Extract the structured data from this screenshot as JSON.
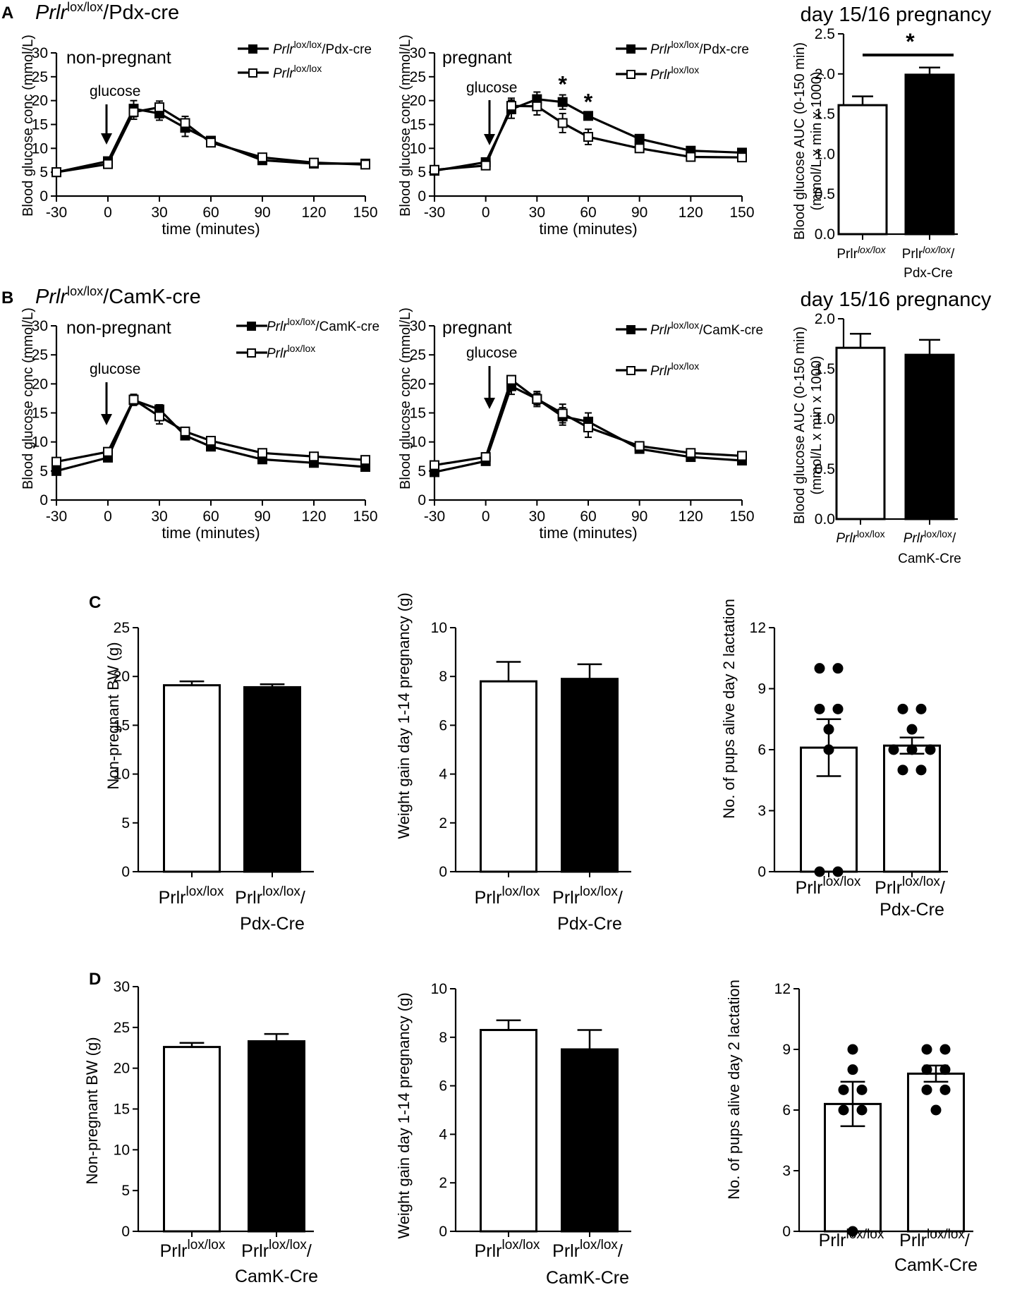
{
  "panels": {
    "A": "A",
    "B": "B",
    "C": "C",
    "D": "D"
  },
  "text": {
    "prlr": "Prlr",
    "lox": "lox/lox",
    "pdx_cre": "/Pdx-cre",
    "camk_cre": "/CamK-cre",
    "pdx_cre_slash": "/Pdx-cre",
    "camk_cre_slash": "/CamK-cre",
    "cat_pdx": "Pdx-Cre",
    "cat_camk": "CamK-Cre",
    "slash": "/",
    "non_pregnant": "non-pregnant",
    "pregnant": "pregnant",
    "glucose": "glucose",
    "day1516": "day 15/16 pregnancy",
    "star": "*",
    "xlabel_time": "time (minutes)",
    "ylabel_glucose": "Blood glucose conc (mmol/L)",
    "ylabel_auc_1": "Blood glucose AUC (0-150 min)",
    "ylabel_auc_2": "(mmol/L x min x 1000)",
    "ylabel_bw": "Non-pregnant BW (g)",
    "ylabel_wg": "Weight gain day 1-14 pregnancy (g)",
    "ylabel_pups": "No. of pups alive day 2 lactation"
  },
  "colors": {
    "black": "#000000",
    "white": "#ffffff"
  },
  "chart_data": [
    {
      "id": "A-nonpregnant",
      "type": "line",
      "title": "non-pregnant",
      "xlabel": "time (minutes)",
      "ylabel": "Blood glucose conc (mmol/L)",
      "xlim": [
        -30,
        150
      ],
      "ylim": [
        0,
        30
      ],
      "xticks": [
        -30,
        0,
        30,
        60,
        90,
        120,
        150
      ],
      "yticks": [
        0,
        5,
        10,
        15,
        20,
        25,
        30
      ],
      "x": [
        -30,
        0,
        15,
        30,
        45,
        60,
        90,
        120,
        150
      ],
      "series": [
        {
          "name": "Prlr lox/lox/Pdx-cre",
          "marker": "filled",
          "values": [
            5.0,
            7.3,
            18.3,
            17.3,
            14.3,
            11.6,
            7.5,
            6.8,
            6.8
          ],
          "err": [
            0.4,
            0.6,
            1.7,
            1.4,
            1.8,
            0.8,
            0.5,
            0.4,
            0.4
          ]
        },
        {
          "name": "Prlr lox/lox",
          "marker": "open",
          "values": [
            5.0,
            6.7,
            17.6,
            18.6,
            15.3,
            11.2,
            8.1,
            7.0,
            6.6
          ],
          "err": [
            0.4,
            0.6,
            1.5,
            1.3,
            1.4,
            0.8,
            0.5,
            0.4,
            0.4
          ]
        }
      ]
    },
    {
      "id": "A-pregnant",
      "type": "line",
      "title": "pregnant",
      "xlabel": "time (minutes)",
      "ylabel": "Blood glucose conc (mmol/L)",
      "xlim": [
        -30,
        150
      ],
      "ylim": [
        0,
        30
      ],
      "xticks": [
        -30,
        0,
        30,
        60,
        90,
        120,
        150
      ],
      "yticks": [
        0,
        5,
        10,
        15,
        20,
        25,
        30
      ],
      "x": [
        -30,
        0,
        15,
        30,
        45,
        60,
        90,
        120,
        150
      ],
      "series": [
        {
          "name": "Prlr lox/lox/Pdx-cre",
          "marker": "filled",
          "values": [
            5.3,
            7.1,
            18.2,
            20.3,
            19.7,
            16.8,
            12.0,
            9.5,
            9.1
          ],
          "err": [
            0.4,
            0.6,
            1.9,
            1.5,
            1.5,
            0.7,
            0.6,
            0.5,
            0.4
          ]
        },
        {
          "name": "Prlr lox/lox",
          "marker": "open",
          "values": [
            5.5,
            6.4,
            18.9,
            18.8,
            15.3,
            12.4,
            10.0,
            8.2,
            8.1
          ],
          "err": [
            0.4,
            0.5,
            1.6,
            1.8,
            2.0,
            1.6,
            0.6,
            0.5,
            0.5
          ]
        }
      ],
      "annotations": [
        {
          "x": 45,
          "text": "*"
        },
        {
          "x": 60,
          "text": "*"
        }
      ]
    },
    {
      "id": "A-auc",
      "type": "bar",
      "title": "day 15/16 pregnancy",
      "ylabel": "Blood glucose AUC (0-150 min) (mmol/L x min x 1000)",
      "ylim": [
        0,
        2.5
      ],
      "yticks": [
        0.0,
        0.5,
        1.0,
        1.5,
        2.0,
        2.5
      ],
      "categories": [
        "Prlr lox/lox",
        "Prlr lox/lox/Pdx-Cre"
      ],
      "values": [
        1.61,
        1.99
      ],
      "err": [
        0.11,
        0.09
      ],
      "significance": "*"
    },
    {
      "id": "B-nonpregnant",
      "type": "line",
      "title": "non-pregnant",
      "xlabel": "time (minutes)",
      "ylabel": "Blood glucose conc (mmol/L)",
      "xlim": [
        -30,
        150
      ],
      "ylim": [
        0,
        30
      ],
      "xticks": [
        -30,
        0,
        30,
        60,
        90,
        120,
        150
      ],
      "yticks": [
        0,
        5,
        10,
        15,
        20,
        25,
        30
      ],
      "x": [
        -30,
        0,
        15,
        30,
        45,
        60,
        90,
        120,
        150
      ],
      "series": [
        {
          "name": "Prlr lox/lox/CamK-cre",
          "marker": "filled",
          "values": [
            5.0,
            7.3,
            17.2,
            15.6,
            11.1,
            9.2,
            7.0,
            6.4,
            5.7
          ],
          "err": [
            0.4,
            0.5,
            0.9,
            0.8,
            0.6,
            0.5,
            0.4,
            0.4,
            0.3
          ]
        },
        {
          "name": "Prlr lox/lox",
          "marker": "open",
          "values": [
            6.6,
            8.3,
            17.3,
            14.4,
            11.8,
            10.2,
            8.1,
            7.5,
            6.9
          ],
          "err": [
            0.4,
            0.5,
            0.9,
            1.3,
            0.6,
            0.5,
            0.4,
            0.4,
            0.3
          ]
        }
      ]
    },
    {
      "id": "B-pregnant",
      "type": "line",
      "title": "pregnant",
      "xlabel": "time (minutes)",
      "ylabel": "Blood glucose conc (mmol/L)",
      "xlim": [
        -30,
        150
      ],
      "ylim": [
        0,
        30
      ],
      "xticks": [
        -30,
        0,
        30,
        60,
        90,
        120,
        150
      ],
      "yticks": [
        0,
        5,
        10,
        15,
        20,
        25,
        30
      ],
      "x": [
        -30,
        0,
        15,
        30,
        45,
        60,
        90,
        120,
        150
      ],
      "series": [
        {
          "name": "Prlr lox/lox/CamK-cre",
          "marker": "filled",
          "values": [
            4.8,
            6.7,
            19.6,
            17.4,
            14.4,
            13.5,
            8.8,
            7.4,
            6.8
          ],
          "err": [
            0.4,
            0.5,
            1.4,
            1.3,
            1.5,
            1.5,
            0.5,
            0.4,
            0.3
          ]
        },
        {
          "name": "Prlr lox/lox",
          "marker": "open",
          "values": [
            6.0,
            7.4,
            20.7,
            17.4,
            14.9,
            12.5,
            9.3,
            8.1,
            7.6
          ],
          "err": [
            0.4,
            0.5,
            0.7,
            1.0,
            1.6,
            1.7,
            0.5,
            0.4,
            0.3
          ]
        }
      ]
    },
    {
      "id": "B-auc",
      "type": "bar",
      "title": "day 15/16 pregnancy",
      "ylabel": "Blood glucose AUC (0-150 min) (mmol/L x min x 1000)",
      "ylim": [
        0,
        2.0
      ],
      "yticks": [
        0.0,
        0.5,
        1.0,
        1.5,
        2.0
      ],
      "categories": [
        "Prlr lox/lox",
        "Prlr lox/lox/CamK-Cre"
      ],
      "values": [
        1.71,
        1.64
      ],
      "err": [
        0.14,
        0.15
      ]
    },
    {
      "id": "C-bw",
      "type": "bar",
      "ylabel": "Non-pregnant BW (g)",
      "ylim": [
        0,
        25
      ],
      "yticks": [
        0,
        5,
        10,
        15,
        20,
        25
      ],
      "categories": [
        "Prlr lox/lox",
        "Prlr lox/lox/Pdx-Cre"
      ],
      "values": [
        19.1,
        18.9
      ],
      "err": [
        0.4,
        0.3
      ]
    },
    {
      "id": "C-wg",
      "type": "bar",
      "ylabel": "Weight gain day 1-14 pregnancy (g)",
      "ylim": [
        0,
        10
      ],
      "yticks": [
        0,
        2,
        4,
        6,
        8,
        10
      ],
      "categories": [
        "Prlr lox/lox",
        "Prlr lox/lox/Pdx-Cre"
      ],
      "values": [
        7.8,
        7.9
      ],
      "err": [
        0.8,
        0.6
      ]
    },
    {
      "id": "C-pups",
      "type": "bar",
      "ylabel": "No. of pups alive day 2 lactation",
      "ylim": [
        0,
        12
      ],
      "yticks": [
        0,
        3,
        6,
        9,
        12
      ],
      "categories": [
        "Prlr lox/lox",
        "Prlr lox/lox/Pdx-Cre"
      ],
      "values": [
        6.1,
        6.2
      ],
      "err": [
        1.4,
        0.4
      ],
      "points": [
        [
          10,
          10,
          8,
          8,
          7,
          6,
          0,
          0
        ],
        [
          8,
          8,
          7,
          6,
          6,
          6,
          5,
          5
        ]
      ]
    },
    {
      "id": "D-bw",
      "type": "bar",
      "ylabel": "Non-pregnant BW (g)",
      "ylim": [
        0,
        30
      ],
      "yticks": [
        0,
        5,
        10,
        15,
        20,
        25,
        30
      ],
      "categories": [
        "Prlr lox/lox",
        "Prlr lox/lox/CamK-Cre"
      ],
      "values": [
        22.6,
        23.3
      ],
      "err": [
        0.5,
        0.9
      ]
    },
    {
      "id": "D-wg",
      "type": "bar",
      "ylabel": "Weight gain day 1-14 pregnancy (g)",
      "ylim": [
        0,
        10
      ],
      "yticks": [
        0,
        2,
        4,
        6,
        8,
        10
      ],
      "categories": [
        "Prlr lox/lox",
        "Prlr lox/lox/CamK-Cre"
      ],
      "values": [
        8.3,
        7.5
      ],
      "err": [
        0.4,
        0.8
      ]
    },
    {
      "id": "D-pups",
      "type": "bar",
      "ylabel": "No. of pups alive day 2 lactation",
      "ylim": [
        0,
        12
      ],
      "yticks": [
        0,
        3,
        6,
        9,
        12
      ],
      "categories": [
        "Prlr lox/lox",
        "Prlr lox/lox/CamK-Cre"
      ],
      "values": [
        6.3,
        7.8
      ],
      "err": [
        1.1,
        0.4
      ],
      "points": [
        [
          9,
          8,
          7,
          7,
          6,
          6,
          0
        ],
        [
          9,
          9,
          8,
          8,
          7,
          7,
          6
        ]
      ]
    }
  ]
}
